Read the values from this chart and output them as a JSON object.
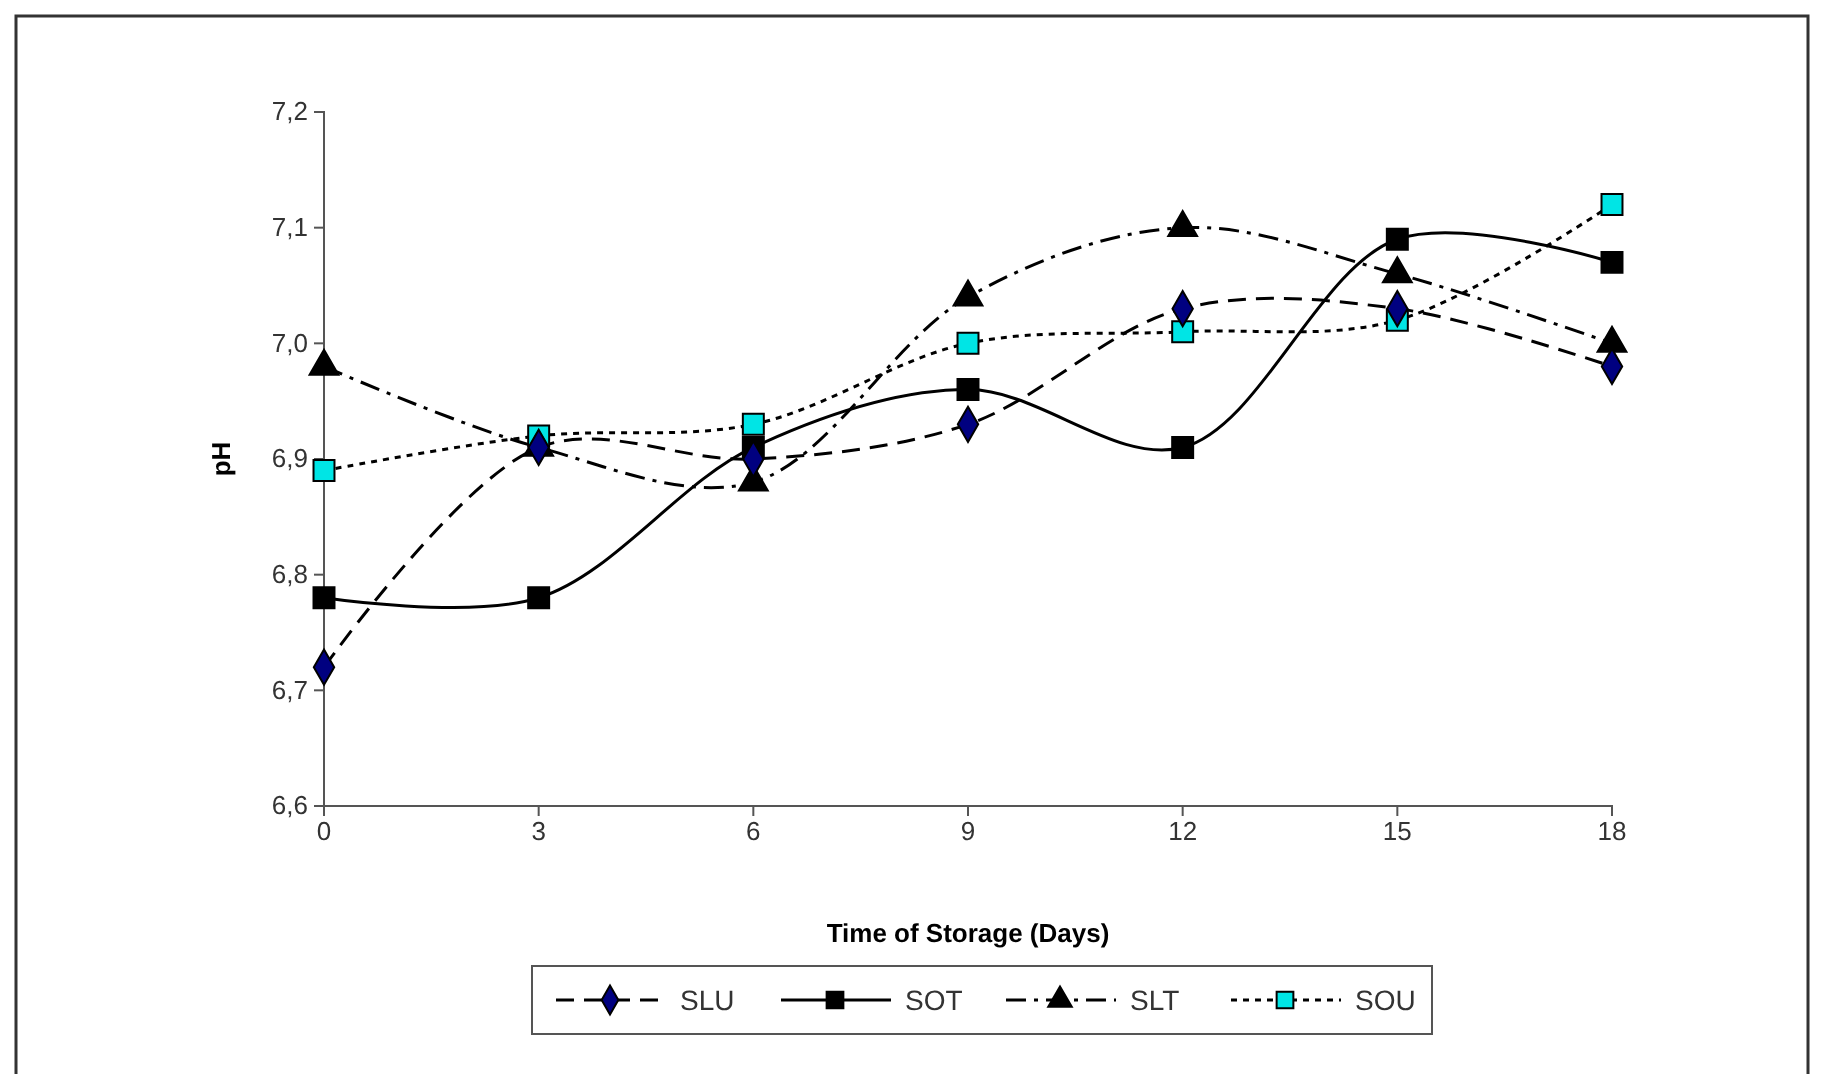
{
  "chart_data": {
    "type": "line",
    "xlabel": "Time of Storage (Days)",
    "ylabel": "pH",
    "x": [
      0,
      3,
      6,
      9,
      12,
      15,
      18
    ],
    "xlim": [
      0,
      18
    ],
    "xticks": [
      0,
      3,
      6,
      9,
      12,
      15,
      18
    ],
    "ylim": [
      6.6,
      7.2
    ],
    "yticks": [
      {
        "value": 6.6,
        "label": "6,6"
      },
      {
        "value": 6.7,
        "label": "6,7"
      },
      {
        "value": 6.8,
        "label": "6,8"
      },
      {
        "value": 6.9,
        "label": "6,9"
      },
      {
        "value": 7.0,
        "label": "7,0"
      },
      {
        "value": 7.1,
        "label": "7,1"
      },
      {
        "value": 7.2,
        "label": "7,2"
      }
    ],
    "grid": false,
    "legend": "bottom",
    "series": [
      {
        "name": "SLU",
        "color": "#000080",
        "marker": "diamond",
        "line_style": "dashed",
        "values": [
          6.72,
          6.91,
          6.9,
          6.93,
          7.03,
          7.03,
          6.98
        ]
      },
      {
        "name": "SOT",
        "color": "#000000",
        "marker": "square",
        "line_style": "solid",
        "values": [
          6.78,
          6.78,
          6.91,
          6.96,
          6.91,
          7.09,
          7.07
        ]
      },
      {
        "name": "SLT",
        "color": "#000000",
        "marker": "triangle",
        "line_style": "dashdot",
        "values": [
          6.98,
          6.91,
          6.88,
          7.04,
          7.1,
          7.06,
          7.0
        ]
      },
      {
        "name": "SOU",
        "color": "#00e5e5",
        "marker": "square",
        "line_style": "dotted",
        "values": [
          6.89,
          6.92,
          6.93,
          7.0,
          7.01,
          7.02,
          7.12
        ]
      }
    ]
  }
}
